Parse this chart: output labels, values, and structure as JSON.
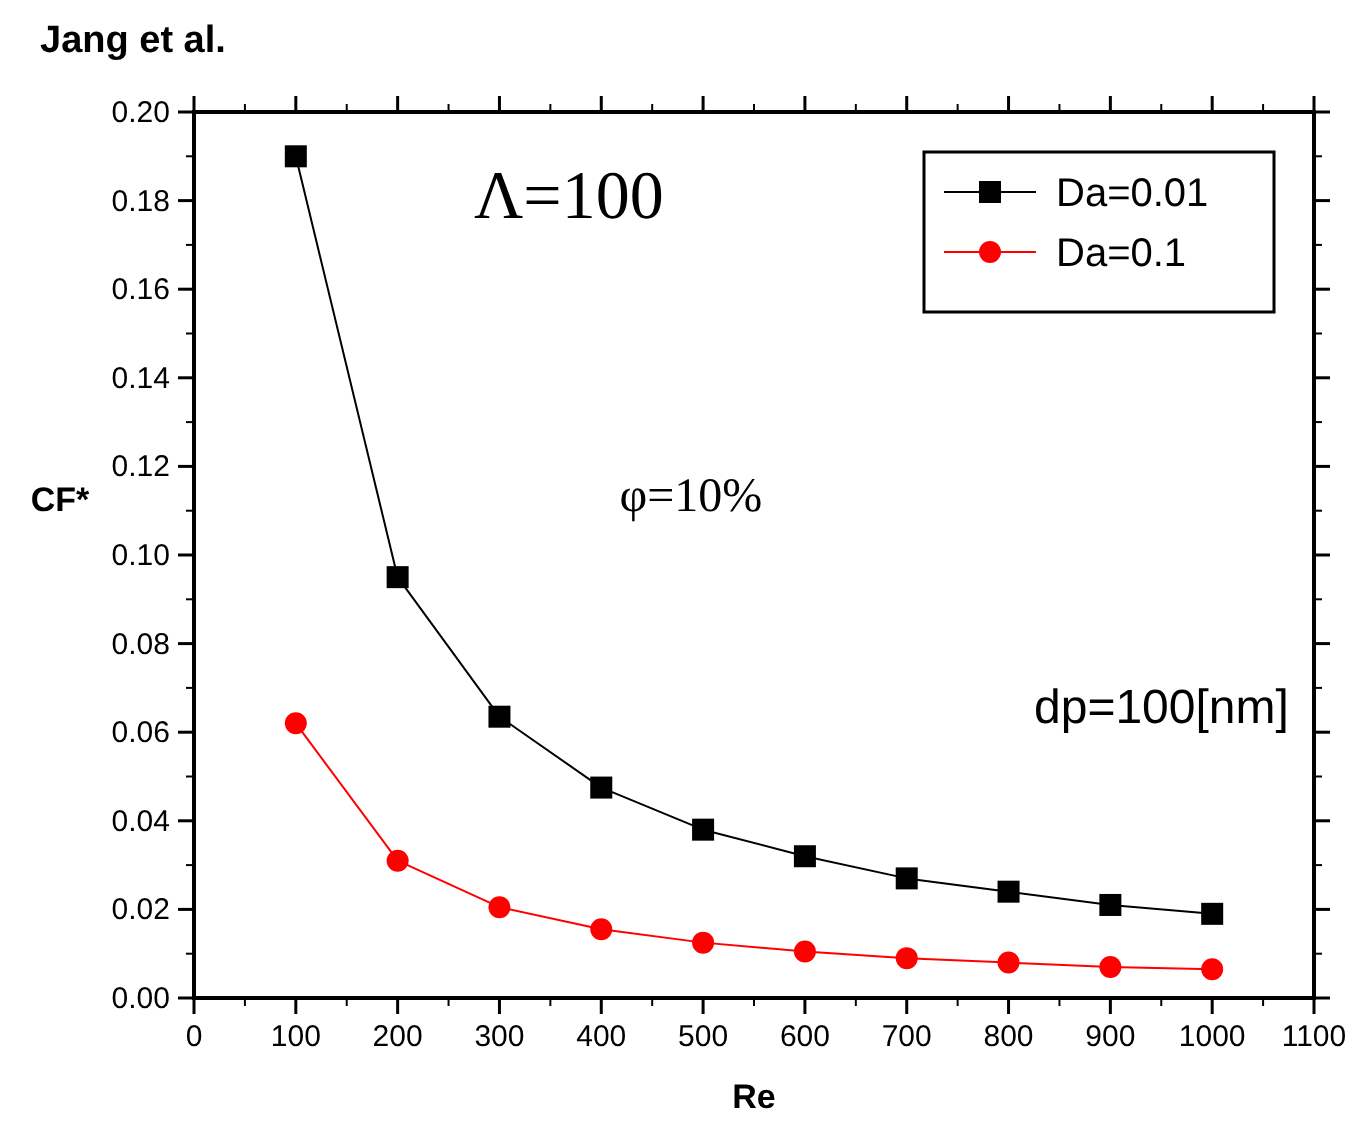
{
  "chart_data": {
    "type": "line",
    "title": "Jang et al.",
    "xlabel": "Re",
    "ylabel": "CF*",
    "x": [
      100,
      200,
      300,
      400,
      500,
      600,
      700,
      800,
      900,
      1000
    ],
    "series": [
      {
        "name": "Da=0.01",
        "color": "#000000",
        "marker": "square",
        "values": [
          0.19,
          0.095,
          0.0635,
          0.0475,
          0.038,
          0.032,
          0.027,
          0.024,
          0.021,
          0.019
        ]
      },
      {
        "name": "Da=0.1",
        "color": "#ff0000",
        "marker": "circle",
        "values": [
          0.062,
          0.031,
          0.0205,
          0.0155,
          0.0125,
          0.0105,
          0.009,
          0.008,
          0.007,
          0.0065
        ]
      }
    ],
    "xlim": [
      0,
      1100
    ],
    "xticks": [
      0,
      100,
      200,
      300,
      400,
      500,
      600,
      700,
      800,
      900,
      1000,
      1100
    ],
    "ylim": [
      0,
      0.2
    ],
    "yticks": [
      {
        "value": 0,
        "label": "0.00"
      },
      {
        "value": 0.02,
        "label": "0.02"
      },
      {
        "value": 0.04,
        "label": "0.04"
      },
      {
        "value": 0.06,
        "label": "0.06"
      },
      {
        "value": 0.08,
        "label": "0.08"
      },
      {
        "value": 0.1,
        "label": "0.10"
      },
      {
        "value": 0.12,
        "label": "0.12"
      },
      {
        "value": 0.14,
        "label": "0.14"
      },
      {
        "value": 0.16,
        "label": "0.16"
      },
      {
        "value": 0.18,
        "label": "0.18"
      },
      {
        "value": 0.2,
        "label": "0.20"
      }
    ],
    "annotations": [
      "Λ=100",
      "φ=10%",
      "dp=100[nm]"
    ],
    "legend": "top right",
    "grid": false
  }
}
